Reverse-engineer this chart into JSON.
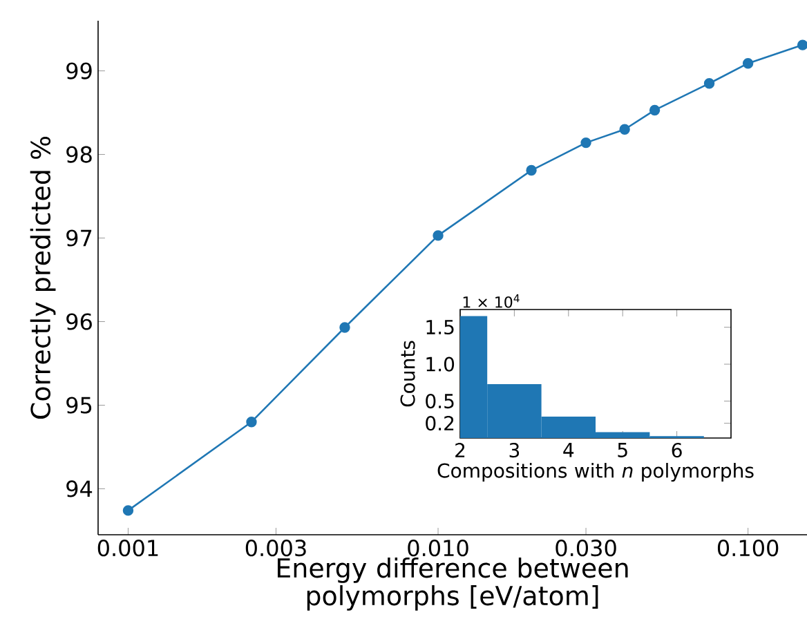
{
  "chart_data": [
    {
      "type": "line",
      "xlabel": "Energy difference between polymorphs [eV/atom]",
      "ylabel": "Correctly predicted  %",
      "log": "x",
      "marker": "circle",
      "x": [
        0.001,
        0.0025,
        0.005,
        0.01,
        0.02,
        0.03,
        0.04,
        0.05,
        0.075,
        0.1,
        0.15
      ],
      "series": [
        {
          "color": "#1f77b4",
          "values": [
            93.74,
            94.8,
            95.93,
            97.03,
            97.81,
            98.14,
            98.3,
            98.53,
            98.85,
            99.09,
            99.31
          ]
        }
      ],
      "xlim": [
        0.0008,
        0.155
      ],
      "ylim": [
        93.45,
        99.6
      ],
      "xticks": [
        0.001,
        0.003,
        {
          "value": 0.01,
          "label": "0.010"
        },
        {
          "value": 0.03,
          "label": "0.030"
        },
        {
          "value": 0.1,
          "label": "0.100"
        }
      ],
      "yticks": [
        94,
        95,
        96,
        97,
        98,
        99
      ]
    },
    {
      "type": "histogram",
      "xlabel": "Compositions with *n* polymorphs",
      "ylabel": "Counts",
      "annotations": [
        "1 × 10$^{4}$"
      ],
      "color": "#1f77b4",
      "bins": [
        2,
        2.5,
        3.5,
        4.5,
        5.5,
        6.5
      ],
      "values": [
        1.65,
        0.73,
        0.29,
        0.08,
        0.025
      ],
      "xlim": [
        2,
        7
      ],
      "ylim": [
        0,
        1.74
      ],
      "xticks": [
        2,
        3,
        4,
        5,
        6
      ],
      "yticks": [
        0.2,
        0.5,
        {
          "value": 1,
          "label": "1.0"
        },
        1.5
      ]
    }
  ]
}
